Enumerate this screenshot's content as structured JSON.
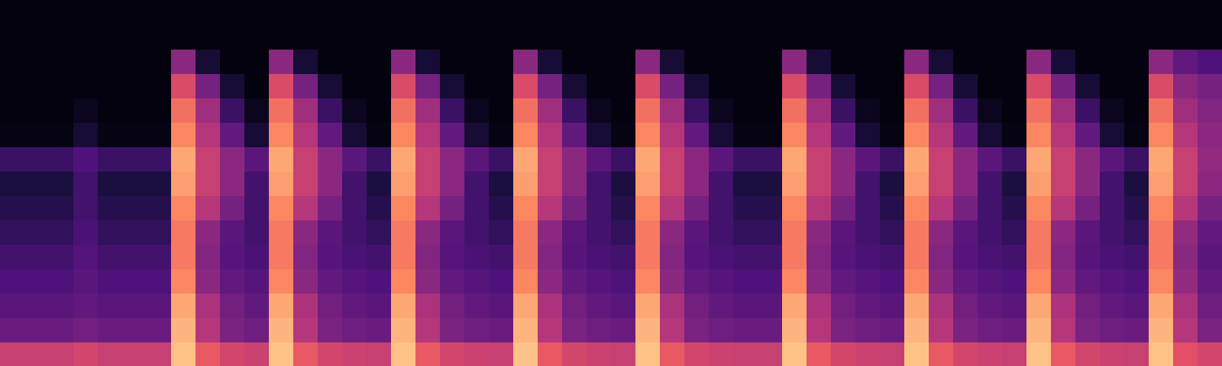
{
  "chart_data": {
    "type": "heatmap",
    "xlim": [
      0,
      50
    ],
    "ylim": [
      0,
      15
    ],
    "zlim": [
      0,
      100
    ],
    "color": "magma",
    "tick_labels": false,
    "z": [
      [
        55,
        55,
        55,
        58,
        55,
        55,
        55,
        88,
        65,
        58,
        56,
        88,
        65,
        58,
        56,
        55,
        88,
        65,
        58,
        56,
        55,
        88,
        65,
        58,
        56,
        55,
        88,
        65,
        58,
        56,
        55,
        55,
        88,
        65,
        58,
        56,
        55,
        88,
        65,
        58,
        56,
        55,
        88,
        65,
        58,
        56,
        55,
        88,
        62,
        58
      ],
      [
        32,
        32,
        32,
        34,
        32,
        32,
        32,
        85,
        50,
        36,
        33,
        85,
        50,
        36,
        33,
        32,
        85,
        50,
        36,
        33,
        32,
        85,
        50,
        36,
        33,
        32,
        85,
        50,
        36,
        33,
        32,
        32,
        85,
        50,
        36,
        33,
        32,
        85,
        50,
        36,
        33,
        32,
        85,
        50,
        36,
        33,
        32,
        85,
        50,
        36
      ],
      [
        28,
        28,
        28,
        30,
        28,
        28,
        28,
        82,
        48,
        34,
        30,
        82,
        48,
        34,
        30,
        28,
        82,
        48,
        34,
        30,
        28,
        82,
        48,
        34,
        30,
        28,
        82,
        48,
        34,
        30,
        28,
        28,
        82,
        48,
        34,
        30,
        28,
        82,
        48,
        34,
        30,
        28,
        82,
        48,
        34,
        30,
        28,
        82,
        48,
        33
      ],
      [
        25,
        25,
        25,
        28,
        25,
        25,
        25,
        75,
        40,
        30,
        27,
        75,
        40,
        30,
        27,
        25,
        75,
        40,
        30,
        27,
        25,
        75,
        40,
        30,
        27,
        25,
        75,
        40,
        30,
        27,
        25,
        25,
        75,
        40,
        30,
        27,
        25,
        75,
        40,
        30,
        27,
        25,
        75,
        40,
        30,
        27,
        25,
        75,
        42,
        30
      ],
      [
        22,
        22,
        22,
        26,
        22,
        22,
        22,
        72,
        38,
        27,
        24,
        72,
        38,
        27,
        24,
        22,
        72,
        38,
        27,
        24,
        22,
        72,
        38,
        27,
        24,
        22,
        72,
        38,
        27,
        24,
        22,
        22,
        72,
        38,
        27,
        24,
        22,
        72,
        38,
        27,
        24,
        22,
        72,
        38,
        27,
        24,
        22,
        72,
        40,
        28
      ],
      [
        18,
        18,
        18,
        24,
        18,
        18,
        18,
        72,
        40,
        28,
        22,
        72,
        40,
        28,
        22,
        18,
        72,
        40,
        28,
        22,
        18,
        72,
        40,
        28,
        22,
        18,
        72,
        40,
        28,
        22,
        18,
        18,
        72,
        40,
        28,
        22,
        18,
        72,
        40,
        28,
        22,
        18,
        72,
        40,
        28,
        22,
        18,
        72,
        42,
        30
      ],
      [
        15,
        15,
        15,
        22,
        15,
        15,
        15,
        75,
        50,
        35,
        22,
        75,
        50,
        35,
        22,
        15,
        75,
        50,
        35,
        22,
        15,
        75,
        50,
        35,
        22,
        15,
        75,
        50,
        35,
        22,
        15,
        15,
        75,
        50,
        35,
        22,
        15,
        75,
        50,
        35,
        22,
        15,
        75,
        50,
        35,
        22,
        15,
        75,
        50,
        35
      ],
      [
        12,
        12,
        12,
        22,
        12,
        12,
        12,
        80,
        55,
        40,
        22,
        80,
        55,
        40,
        22,
        12,
        80,
        55,
        40,
        22,
        12,
        80,
        55,
        40,
        22,
        12,
        80,
        55,
        40,
        22,
        12,
        12,
        80,
        55,
        40,
        22,
        12,
        80,
        55,
        40,
        22,
        12,
        80,
        55,
        40,
        22,
        12,
        80,
        55,
        40
      ],
      [
        20,
        20,
        20,
        25,
        20,
        20,
        20,
        82,
        55,
        40,
        28,
        82,
        55,
        40,
        28,
        20,
        82,
        55,
        40,
        28,
        20,
        82,
        55,
        40,
        28,
        20,
        82,
        55,
        40,
        28,
        20,
        20,
        82,
        55,
        40,
        28,
        20,
        82,
        55,
        40,
        28,
        20,
        82,
        55,
        40,
        28,
        20,
        82,
        55,
        42
      ],
      [
        3,
        3,
        3,
        10,
        3,
        3,
        3,
        75,
        50,
        30,
        10,
        75,
        50,
        30,
        10,
        3,
        75,
        50,
        30,
        10,
        3,
        75,
        50,
        30,
        10,
        3,
        75,
        50,
        30,
        10,
        3,
        3,
        75,
        50,
        30,
        10,
        3,
        75,
        50,
        30,
        10,
        3,
        75,
        50,
        30,
        10,
        3,
        75,
        50,
        40
      ],
      [
        2,
        2,
        2,
        5,
        2,
        2,
        2,
        70,
        45,
        20,
        5,
        70,
        45,
        20,
        5,
        2,
        70,
        45,
        20,
        5,
        2,
        70,
        45,
        20,
        5,
        2,
        70,
        45,
        20,
        5,
        2,
        2,
        70,
        45,
        20,
        5,
        2,
        70,
        45,
        20,
        5,
        2,
        70,
        45,
        20,
        5,
        2,
        70,
        45,
        38
      ],
      [
        2,
        2,
        2,
        2,
        2,
        2,
        2,
        60,
        35,
        10,
        2,
        60,
        35,
        10,
        2,
        2,
        60,
        35,
        10,
        2,
        2,
        60,
        35,
        10,
        2,
        2,
        60,
        35,
        10,
        2,
        2,
        2,
        60,
        35,
        10,
        2,
        2,
        60,
        35,
        10,
        2,
        2,
        60,
        35,
        10,
        2,
        2,
        60,
        40,
        35
      ],
      [
        2,
        2,
        2,
        2,
        2,
        2,
        2,
        40,
        10,
        2,
        2,
        40,
        10,
        2,
        2,
        2,
        40,
        10,
        2,
        2,
        2,
        40,
        10,
        2,
        2,
        2,
        40,
        10,
        2,
        2,
        2,
        2,
        40,
        10,
        2,
        2,
        2,
        40,
        10,
        2,
        2,
        2,
        40,
        10,
        2,
        2,
        2,
        40,
        30,
        25
      ],
      [
        2,
        2,
        2,
        2,
        2,
        2,
        2,
        2,
        2,
        2,
        2,
        2,
        2,
        2,
        2,
        2,
        2,
        2,
        2,
        2,
        2,
        2,
        2,
        2,
        2,
        2,
        2,
        2,
        2,
        2,
        2,
        2,
        2,
        2,
        2,
        2,
        2,
        2,
        2,
        2,
        2,
        2,
        2,
        2,
        2,
        2,
        2,
        2,
        2,
        2
      ],
      [
        2,
        2,
        2,
        2,
        2,
        2,
        2,
        2,
        2,
        2,
        2,
        2,
        2,
        2,
        2,
        2,
        2,
        2,
        2,
        2,
        2,
        2,
        2,
        2,
        2,
        2,
        2,
        2,
        2,
        2,
        2,
        2,
        2,
        2,
        2,
        2,
        2,
        2,
        2,
        2,
        2,
        2,
        2,
        2,
        2,
        2,
        2,
        2,
        2,
        2
      ]
    ]
  }
}
